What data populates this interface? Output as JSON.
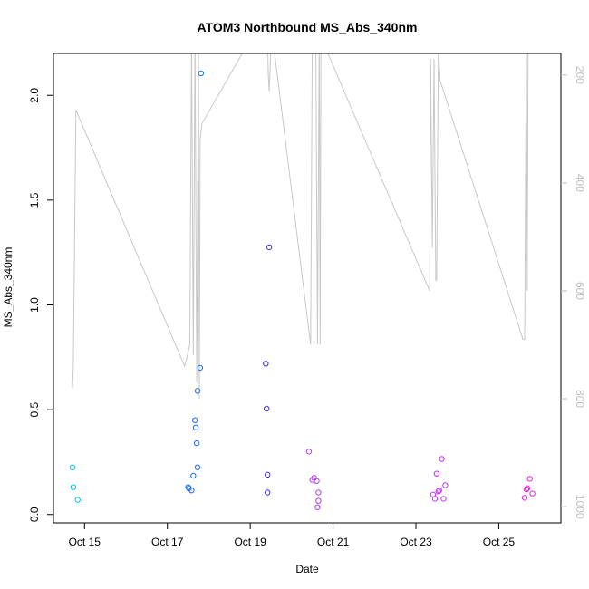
{
  "chart_data": {
    "type": "scatter",
    "title": "ATOM3 Northbound MS_Abs_340nm",
    "xlabel": "Date",
    "ylabel": "MS_Abs_340nm",
    "xlim": [
      "2016-10-14 06:00",
      "2016-10-26 12:00"
    ],
    "ylim": [
      -0.04,
      2.2
    ],
    "right_ylim": [
      1030,
      160
    ],
    "right_ylim_note": "inverted secondary axis",
    "grid": false,
    "legend": "none",
    "x_ticks": [
      "Oct 15",
      "Oct 17",
      "Oct 19",
      "Oct 21",
      "Oct 23",
      "Oct 25"
    ],
    "x_tick_values": [
      "2016-10-15 00:00",
      "2016-10-17 00:00",
      "2016-10-19 00:00",
      "2016-10-21 00:00",
      "2016-10-23 00:00",
      "2016-10-25 00:00"
    ],
    "y_ticks": [
      "0.0",
      "0.5",
      "1.0",
      "1.5",
      "2.0"
    ],
    "y_tick_values": [
      0.0,
      0.5,
      1.0,
      1.5,
      2.0
    ],
    "right_ticks": [
      "200",
      "400",
      "600",
      "800",
      "1000"
    ],
    "right_tick_values": [
      200,
      400,
      600,
      800,
      1000
    ],
    "points": [
      {
        "x": "2016-10-14 17:00",
        "y": 0.225,
        "color": "#00bfff"
      },
      {
        "x": "2016-10-14 17:30",
        "y": 0.13,
        "color": "#00bfff"
      },
      {
        "x": "2016-10-14 20:00",
        "y": 0.07,
        "color": "#00bfff"
      },
      {
        "x": "2016-10-17 12:00",
        "y": 0.13,
        "color": "#1c6bff"
      },
      {
        "x": "2016-10-17 12:30",
        "y": 0.125,
        "color": "#1c6bff"
      },
      {
        "x": "2016-10-17 14:00",
        "y": 0.115,
        "color": "#1c6bff"
      },
      {
        "x": "2016-10-17 15:00",
        "y": 0.185,
        "color": "#1c6bff"
      },
      {
        "x": "2016-10-17 16:00",
        "y": 0.45,
        "color": "#1c6bff"
      },
      {
        "x": "2016-10-17 16:30",
        "y": 0.415,
        "color": "#1c6bff"
      },
      {
        "x": "2016-10-17 17:00",
        "y": 0.34,
        "color": "#1c6bff"
      },
      {
        "x": "2016-10-17 17:30",
        "y": 0.225,
        "color": "#1c6bff"
      },
      {
        "x": "2016-10-17 17:30",
        "y": 0.59,
        "color": "#1c6bff"
      },
      {
        "x": "2016-10-17 19:00",
        "y": 0.7,
        "color": "#1c6bff"
      },
      {
        "x": "2016-10-17 19:30",
        "y": 2.105,
        "color": "#1c6bff"
      },
      {
        "x": "2016-10-19 09:00",
        "y": 0.72,
        "color": "#3a2bff"
      },
      {
        "x": "2016-10-19 09:30",
        "y": 0.505,
        "color": "#3a2bff"
      },
      {
        "x": "2016-10-19 10:00",
        "y": 0.19,
        "color": "#3a2bff"
      },
      {
        "x": "2016-10-19 10:00",
        "y": 0.105,
        "color": "#3a2bff"
      },
      {
        "x": "2016-10-19 11:00",
        "y": 1.275,
        "color": "#3a2bff"
      },
      {
        "x": "2016-10-20 10:00",
        "y": 0.3,
        "color": "#b83cff"
      },
      {
        "x": "2016-10-20 12:00",
        "y": 0.165,
        "color": "#b83cff"
      },
      {
        "x": "2016-10-20 13:00",
        "y": 0.175,
        "color": "#b83cff"
      },
      {
        "x": "2016-10-20 14:30",
        "y": 0.16,
        "color": "#b83cff"
      },
      {
        "x": "2016-10-20 15:30",
        "y": 0.105,
        "color": "#b83cff"
      },
      {
        "x": "2016-10-20 15:30",
        "y": 0.065,
        "color": "#b83cff"
      },
      {
        "x": "2016-10-20 15:00",
        "y": 0.035,
        "color": "#b83cff"
      },
      {
        "x": "2016-10-23 10:00",
        "y": 0.095,
        "color": "#cc2bff"
      },
      {
        "x": "2016-10-23 11:00",
        "y": 0.075,
        "color": "#cc2bff"
      },
      {
        "x": "2016-10-23 12:00",
        "y": 0.195,
        "color": "#cc2bff"
      },
      {
        "x": "2016-10-23 13:00",
        "y": 0.11,
        "color": "#cc2bff"
      },
      {
        "x": "2016-10-23 13:30",
        "y": 0.115,
        "color": "#cc2bff"
      },
      {
        "x": "2016-10-23 15:00",
        "y": 0.265,
        "color": "#cc2bff"
      },
      {
        "x": "2016-10-23 16:00",
        "y": 0.075,
        "color": "#cc2bff"
      },
      {
        "x": "2016-10-23 17:00",
        "y": 0.14,
        "color": "#cc2bff"
      },
      {
        "x": "2016-10-25 15:00",
        "y": 0.08,
        "color": "#ea1fe0"
      },
      {
        "x": "2016-10-25 16:00",
        "y": 0.12,
        "color": "#ea1fe0"
      },
      {
        "x": "2016-10-25 16:30",
        "y": 0.125,
        "color": "#ea1fe0"
      },
      {
        "x": "2016-10-25 18:00",
        "y": 0.17,
        "color": "#ea1fe0"
      },
      {
        "x": "2016-10-25 19:30",
        "y": 0.1,
        "color": "#ea1fe0"
      }
    ],
    "altitude_series": {
      "color": "#c8c8c8",
      "axis": "right",
      "points": [
        {
          "x": "2016-10-14 17:00",
          "y": 780
        },
        {
          "x": "2016-10-14 17:30",
          "y": 740
        },
        {
          "x": "2016-10-14 19:00",
          "y": 265
        },
        {
          "x": "2016-10-17 10:00",
          "y": 740
        },
        {
          "x": "2016-10-17 13:00",
          "y": 700
        },
        {
          "x": "2016-10-17 14:00",
          "y": 130
        },
        {
          "x": "2016-10-17 15:00",
          "y": 720
        },
        {
          "x": "2016-10-17 16:00",
          "y": 130
        },
        {
          "x": "2016-10-17 17:00",
          "y": 770
        },
        {
          "x": "2016-10-17 18:00",
          "y": 130
        },
        {
          "x": "2016-10-17 18:30",
          "y": 800
        },
        {
          "x": "2016-10-17 19:00",
          "y": 320
        },
        {
          "x": "2016-10-17 20:00",
          "y": 290
        },
        {
          "x": "2016-10-18 23:00",
          "y": 140
        },
        {
          "x": "2016-10-19 06:00",
          "y": 130
        },
        {
          "x": "2016-10-19 10:00",
          "y": 130
        },
        {
          "x": "2016-10-19 10:30",
          "y": 200
        },
        {
          "x": "2016-10-19 11:00",
          "y": 230
        },
        {
          "x": "2016-10-19 12:00",
          "y": 150
        },
        {
          "x": "2016-10-19 13:00",
          "y": 130
        },
        {
          "x": "2016-10-20 11:00",
          "y": 700
        },
        {
          "x": "2016-10-20 12:00",
          "y": 120
        },
        {
          "x": "2016-10-20 14:00",
          "y": 130
        },
        {
          "x": "2016-10-20 15:00",
          "y": 700
        },
        {
          "x": "2016-10-20 16:00",
          "y": 130
        },
        {
          "x": "2016-10-20 16:30",
          "y": 700
        },
        {
          "x": "2016-10-20 17:00",
          "y": 130
        },
        {
          "x": "2016-10-23 08:00",
          "y": 600
        },
        {
          "x": "2016-10-23 08:30",
          "y": 170
        },
        {
          "x": "2016-10-23 09:30",
          "y": 520
        },
        {
          "x": "2016-10-23 10:30",
          "y": 170
        },
        {
          "x": "2016-10-23 11:30",
          "y": 580
        },
        {
          "x": "2016-10-23 12:00",
          "y": 580
        },
        {
          "x": "2016-10-23 13:00",
          "y": 150
        },
        {
          "x": "2016-10-23 14:00",
          "y": 210
        },
        {
          "x": "2016-10-25 14:00",
          "y": 690
        },
        {
          "x": "2016-10-25 15:00",
          "y": 690
        },
        {
          "x": "2016-10-25 16:00",
          "y": 130
        },
        {
          "x": "2016-10-25 16:30",
          "y": 600
        },
        {
          "x": "2016-10-25 17:00",
          "y": 130
        }
      ]
    }
  }
}
